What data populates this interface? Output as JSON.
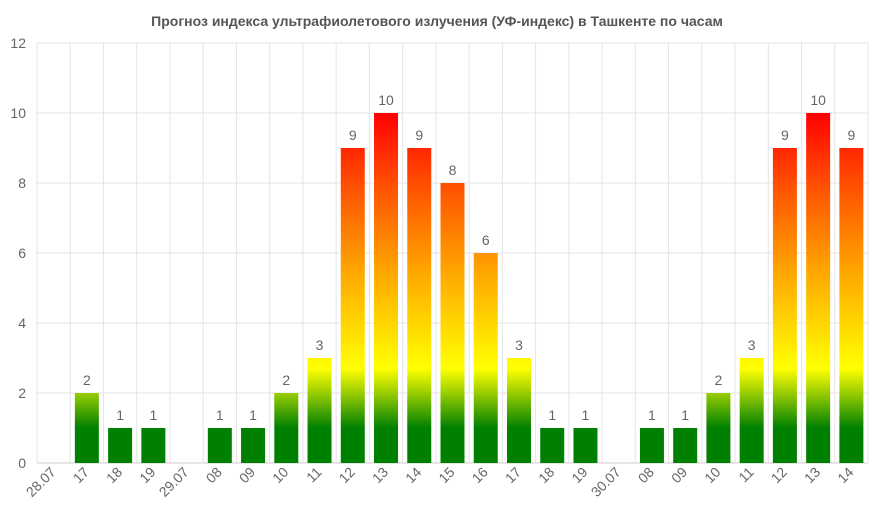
{
  "chart_data": {
    "type": "bar",
    "title": "Прогноз индекса ультрафиолетового излучения (УФ-индекс) в Ташкенте по часам",
    "xlabel": "",
    "ylabel": "",
    "ylim": [
      0,
      12
    ],
    "yticks": [
      0,
      2,
      4,
      6,
      8,
      10,
      12
    ],
    "grid": true,
    "categories": [
      "28.07",
      "17",
      "18",
      "19",
      "29.07",
      "08",
      "09",
      "10",
      "11",
      "12",
      "13",
      "14",
      "15",
      "16",
      "17",
      "18",
      "19",
      "30.07",
      "08",
      "09",
      "10",
      "11",
      "12",
      "13",
      "14"
    ],
    "values": [
      null,
      2,
      1,
      1,
      null,
      1,
      1,
      2,
      3,
      9,
      10,
      9,
      8,
      6,
      3,
      1,
      1,
      null,
      1,
      1,
      2,
      3,
      9,
      10,
      9
    ],
    "colors": {
      "low": "#008000",
      "moderate": "#ffff00",
      "high": "#ffa500",
      "very_high": "#ff5000",
      "extreme": "#ff0000"
    }
  }
}
